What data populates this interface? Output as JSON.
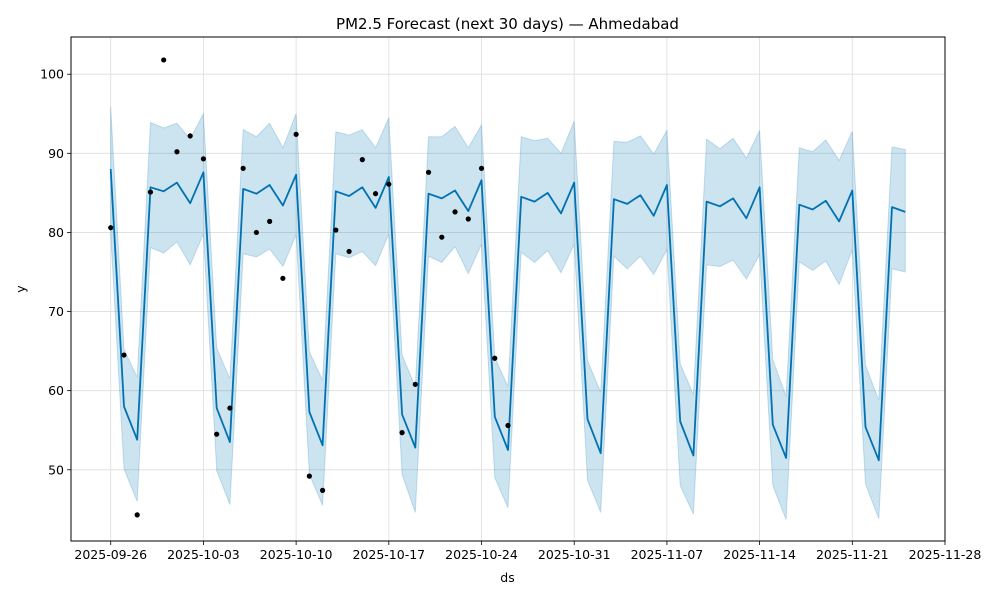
{
  "chart_data": {
    "type": "line",
    "title": "PM2.5 Forecast (next 30 days) — Ahmedabad",
    "xlabel": "ds",
    "ylabel": "y",
    "xlim": [
      "2025-09-23",
      "2025-11-28"
    ],
    "ylim": [
      41,
      104.7
    ],
    "grid": true,
    "x_ticks": [
      "2025-09-26",
      "2025-10-03",
      "2025-10-10",
      "2025-10-17",
      "2025-10-24",
      "2025-10-31",
      "2025-11-07",
      "2025-11-14",
      "2025-11-21",
      "2025-11-28"
    ],
    "y_ticks": [
      50,
      60,
      70,
      80,
      90,
      100
    ],
    "colors": {
      "line": "#0072B2",
      "band": "#0072B2",
      "points": "#000000",
      "grid": "#dddddd"
    },
    "series": [
      {
        "kind": "forecast",
        "x": [
          "2025-09-26",
          "2025-09-27",
          "2025-09-28",
          "2025-09-29",
          "2025-09-30",
          "2025-10-01",
          "2025-10-02",
          "2025-10-03",
          "2025-10-04",
          "2025-10-05",
          "2025-10-06",
          "2025-10-07",
          "2025-10-08",
          "2025-10-09",
          "2025-10-10",
          "2025-10-11",
          "2025-10-12",
          "2025-10-13",
          "2025-10-14",
          "2025-10-15",
          "2025-10-16",
          "2025-10-17",
          "2025-10-18",
          "2025-10-19",
          "2025-10-20",
          "2025-10-21",
          "2025-10-22",
          "2025-10-23",
          "2025-10-24",
          "2025-10-25",
          "2025-10-26",
          "2025-10-27",
          "2025-10-28",
          "2025-10-29",
          "2025-10-30",
          "2025-10-31",
          "2025-11-01",
          "2025-11-02",
          "2025-11-03",
          "2025-11-04",
          "2025-11-05",
          "2025-11-06",
          "2025-11-07",
          "2025-11-08",
          "2025-11-09",
          "2025-11-10",
          "2025-11-11",
          "2025-11-12",
          "2025-11-13",
          "2025-11-14",
          "2025-11-15",
          "2025-11-16",
          "2025-11-17",
          "2025-11-18",
          "2025-11-19",
          "2025-11-20",
          "2025-11-21",
          "2025-11-22",
          "2025-11-23",
          "2025-11-24",
          "2025-11-25"
        ],
        "yhat": [
          88,
          58,
          53.8,
          85.7,
          85.2,
          86.3,
          83.7,
          87.6,
          57.8,
          53.5,
          85.5,
          84.9,
          86,
          83.4,
          87.3,
          57.3,
          53.1,
          85.2,
          84.6,
          85.7,
          83.1,
          87,
          57,
          52.8,
          84.9,
          84.3,
          85.3,
          82.7,
          86.6,
          56.7,
          52.5,
          84.5,
          83.9,
          85,
          82.4,
          86.3,
          56.4,
          52.1,
          84.2,
          83.6,
          84.7,
          82.1,
          86,
          56.1,
          51.8,
          83.9,
          83.3,
          84.3,
          81.8,
          85.7,
          55.7,
          51.5,
          83.5,
          82.9,
          84,
          81.4,
          85.3,
          55.4,
          51.2,
          83.2,
          82.6
        ],
        "yhat_upper": [
          95.9,
          65.2,
          61.7,
          93.9,
          93.2,
          93.8,
          91.8,
          95,
          65.4,
          61.5,
          93,
          92.1,
          93.8,
          90.7,
          95,
          64.9,
          61.3,
          92.7,
          92.3,
          93,
          90.7,
          94.5,
          64.5,
          60.5,
          92.1,
          92.1,
          93.4,
          90.7,
          93.6,
          64.2,
          60.5,
          92.1,
          91.6,
          91.9,
          90,
          94.1,
          63.8,
          59.8,
          91.5,
          91.4,
          92.2,
          89.9,
          92.9,
          63.4,
          59.5,
          91.8,
          90.6,
          91.9,
          89.4,
          92.9,
          63.9,
          59.3,
          90.7,
          90.2,
          91.7,
          89.1,
          92.8,
          63.2,
          58.8,
          90.8,
          90.5
        ],
        "yhat_lower": [
          79.8,
          50.1,
          46,
          78.1,
          77.4,
          78.8,
          75.9,
          79.8,
          49.9,
          45.6,
          77.3,
          76.9,
          77.9,
          75.7,
          79.7,
          49.4,
          45.5,
          77.3,
          76.8,
          77.6,
          75.8,
          79.8,
          49.4,
          44.6,
          77,
          76.2,
          78.2,
          74.8,
          78.5,
          49,
          45.2,
          77.5,
          76.2,
          77.7,
          74.9,
          78.5,
          48.7,
          44.6,
          77,
          75.4,
          77,
          74.7,
          77.8,
          48,
          44.4,
          75.9,
          75.7,
          76.5,
          74.1,
          77.2,
          48,
          43.7,
          76.3,
          75.2,
          76.4,
          73.4,
          77.8,
          48.2,
          43.8,
          75.4,
          75
        ]
      },
      {
        "kind": "observed",
        "x": [
          "2025-09-26",
          "2025-09-27",
          "2025-09-28",
          "2025-09-29",
          "2025-09-30",
          "2025-10-01",
          "2025-10-02",
          "2025-10-03",
          "2025-10-04",
          "2025-10-05",
          "2025-10-06",
          "2025-10-07",
          "2025-10-08",
          "2025-10-09",
          "2025-10-10",
          "2025-10-11",
          "2025-10-12",
          "2025-10-13",
          "2025-10-14",
          "2025-10-15",
          "2025-10-16",
          "2025-10-17",
          "2025-10-18",
          "2025-10-19",
          "2025-10-20",
          "2025-10-21",
          "2025-10-22",
          "2025-10-23",
          "2025-10-24",
          "2025-10-25",
          "2025-10-26"
        ],
        "y": [
          80.6,
          64.5,
          44.3,
          85.1,
          101.8,
          90.2,
          92.2,
          89.3,
          54.5,
          57.8,
          88.1,
          80,
          81.4,
          74.2,
          92.4,
          49.2,
          47.4,
          80.3,
          77.6,
          89.2,
          84.9,
          86.1,
          54.7,
          60.8,
          87.6,
          79.4,
          82.6,
          81.7,
          88.1,
          64.1,
          55.6
        ]
      }
    ]
  }
}
